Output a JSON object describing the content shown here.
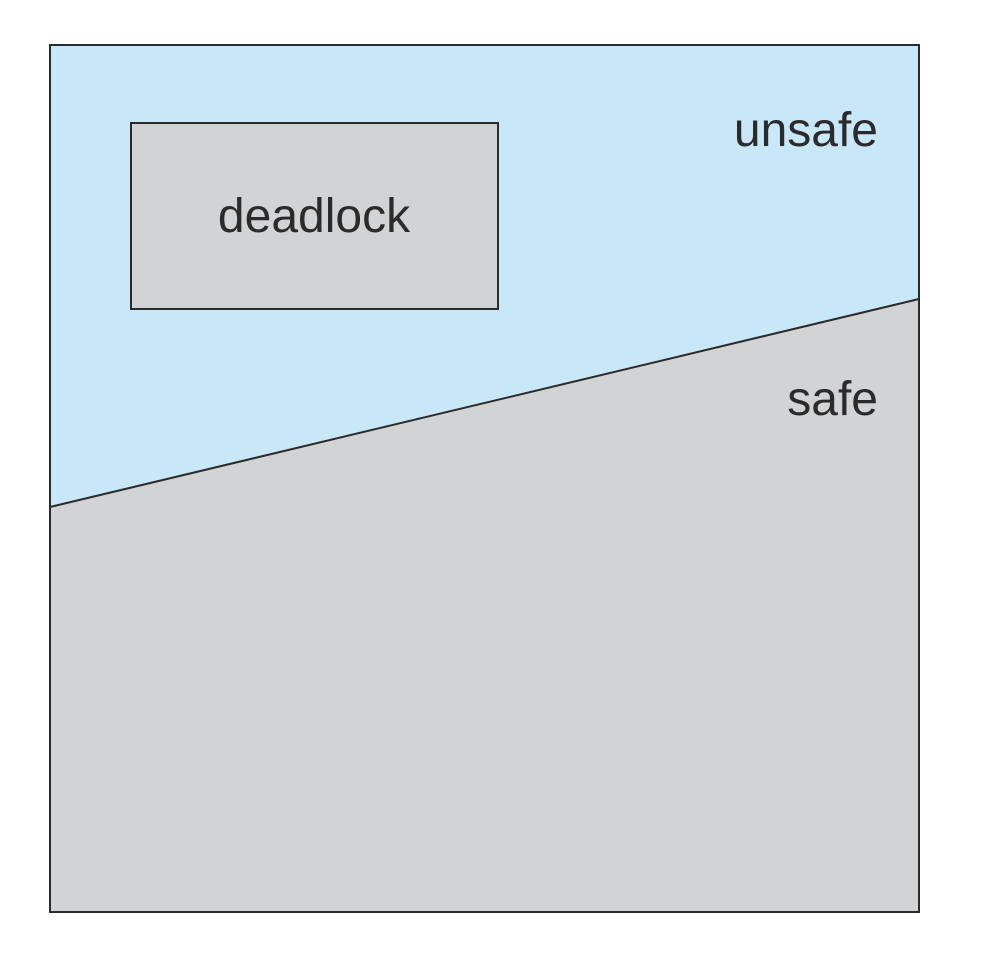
{
  "diagram": {
    "regions": {
      "unsafe": {
        "label": "unsafe",
        "color": "#c8e8fa"
      },
      "safe": {
        "label": "safe",
        "color": "#d2d3d5"
      },
      "deadlock": {
        "label": "deadlock",
        "color": "#d2d3d5"
      }
    },
    "stroke_color": "#2b2b2b"
  }
}
